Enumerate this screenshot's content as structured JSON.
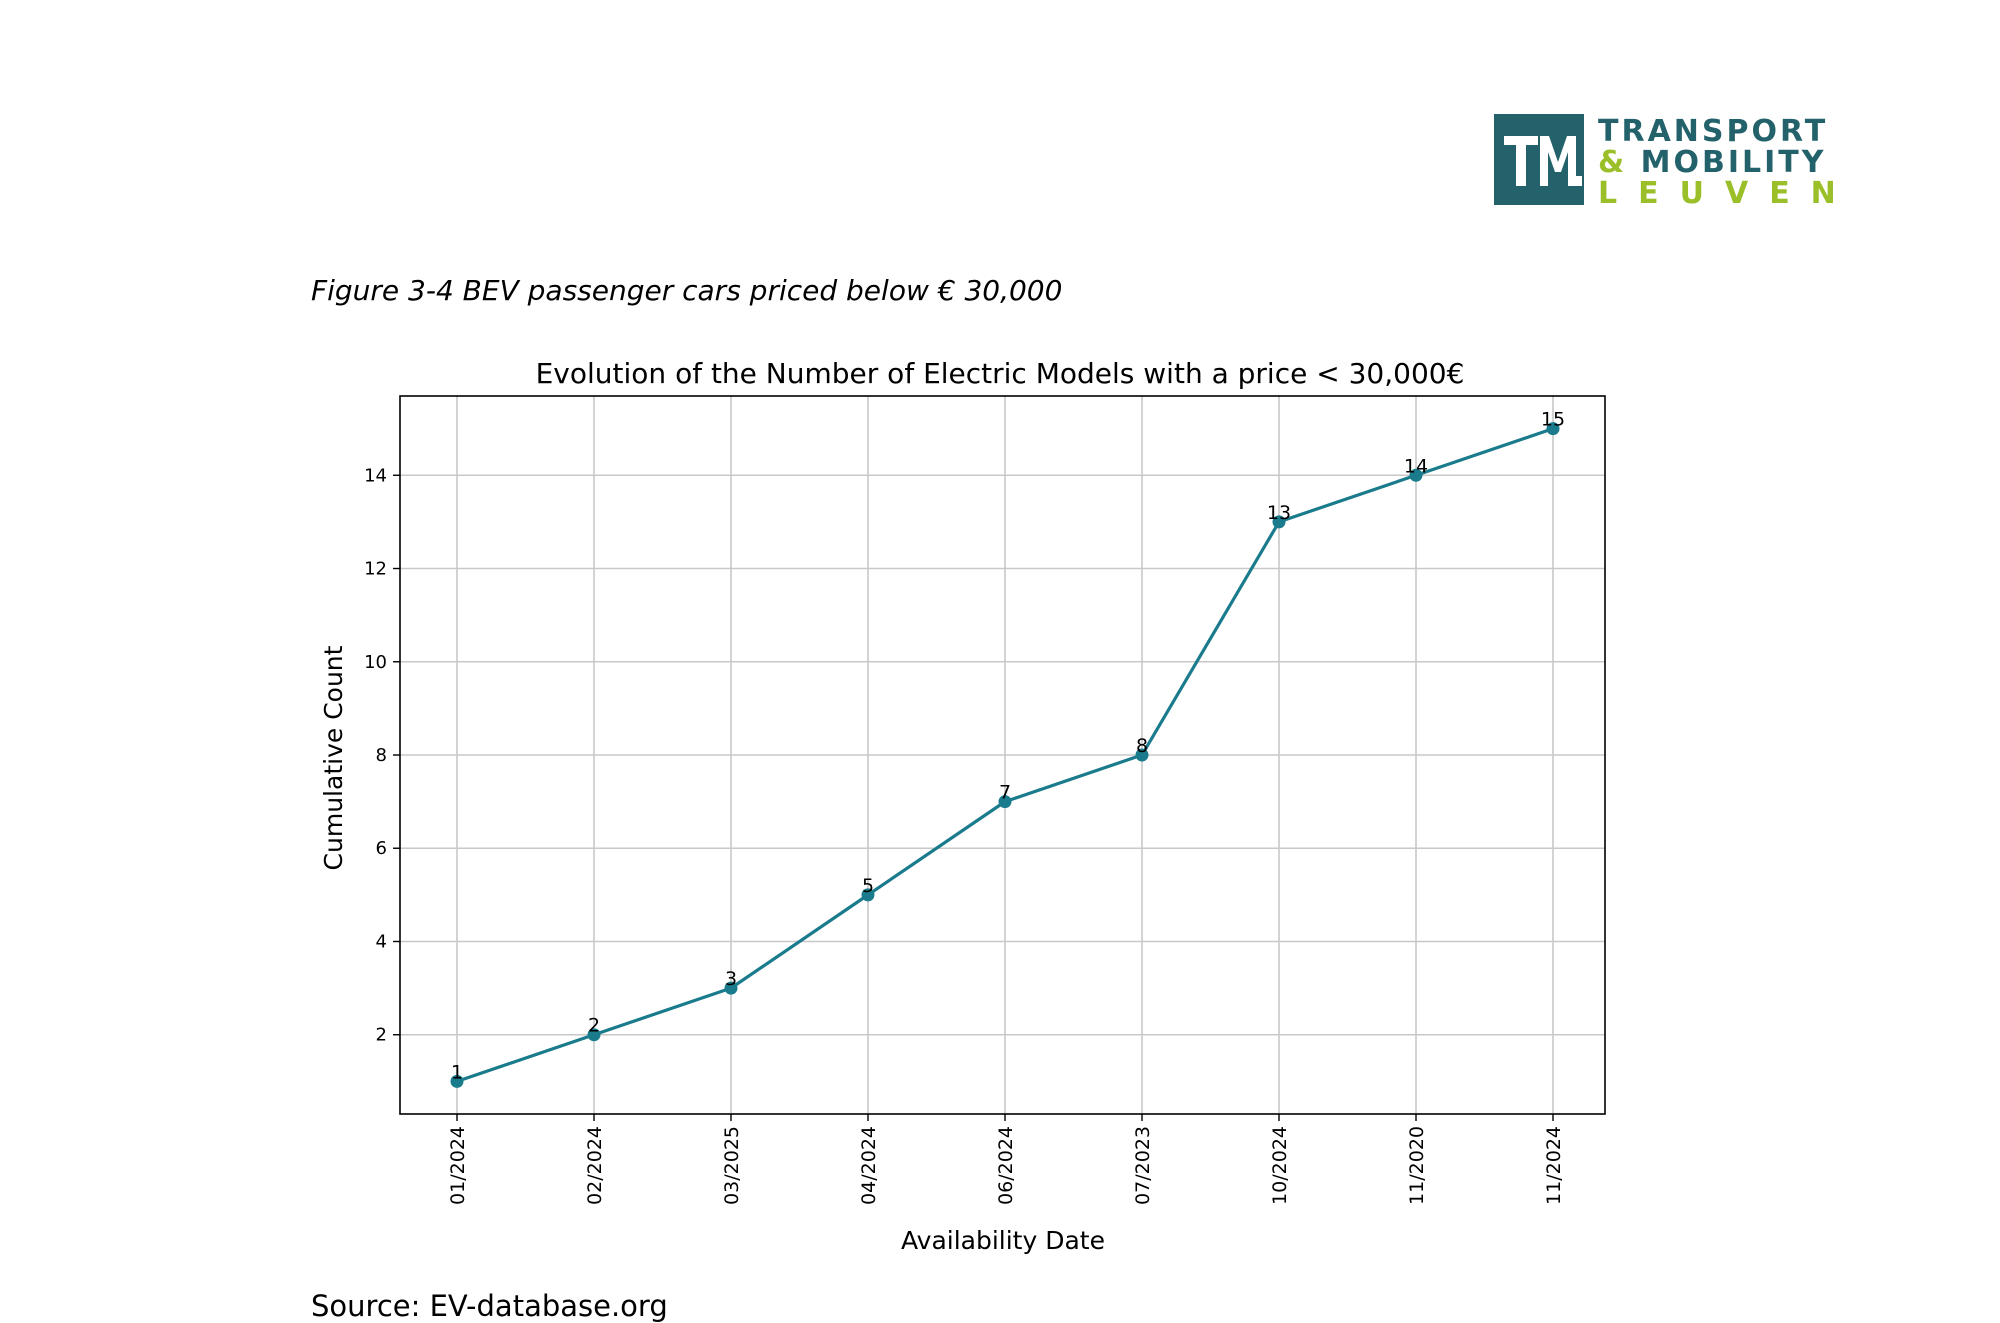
{
  "logo": {
    "line1": "TRANSPORT",
    "line2_amp": "&",
    "line2_rest": "MOBILITY",
    "line3": "LEUVEN"
  },
  "caption": "Figure 3-4 BEV passenger cars priced below € 30,000",
  "source": "Source: EV-database.org",
  "colors": {
    "series": "#1a7b8c",
    "logo_teal": "#23616b",
    "logo_green": "#9bbf29",
    "grid": "#c8c8c8"
  },
  "chart_data": {
    "type": "line",
    "title": "Evolution of the Number of Electric Models with a price < 30,000€",
    "xlabel": "Availability Date",
    "ylabel": "Cumulative Count",
    "categories": [
      "01/2024",
      "02/2024",
      "03/2025",
      "04/2024",
      "06/2024",
      "07/2023",
      "10/2024",
      "11/2020",
      "11/2024"
    ],
    "values": [
      1,
      2,
      3,
      5,
      7,
      8,
      13,
      14,
      15
    ],
    "point_labels": [
      "1",
      "2",
      "3",
      "5",
      "7",
      "8",
      "13",
      "14",
      "15"
    ],
    "yticks": [
      2,
      4,
      6,
      8,
      10,
      12,
      14
    ],
    "ylim": [
      0.3,
      15.7
    ],
    "grid": true,
    "markers": true,
    "x_tick_rotation": "vertical"
  }
}
